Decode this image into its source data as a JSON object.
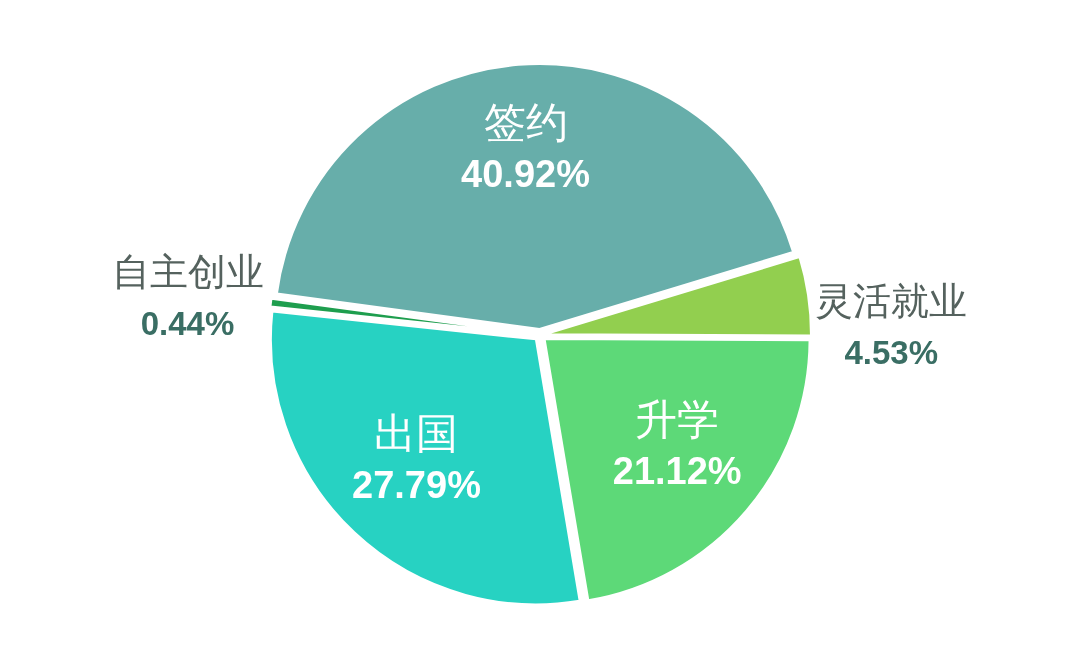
{
  "chart_data": {
    "type": "pie",
    "categories": [
      "签约",
      "灵活就业",
      "升学",
      "出国",
      "自主创业"
    ],
    "values": [
      40.92,
      4.53,
      21.12,
      27.79,
      0.44
    ],
    "colors": [
      "#67aeaa",
      "#92cf4f",
      "#5dd978",
      "#27d2c2",
      "#1e9e4e"
    ],
    "value_labels": [
      "40.92%",
      "4.53%",
      "21.12%",
      "27.79%",
      "0.44%"
    ]
  }
}
